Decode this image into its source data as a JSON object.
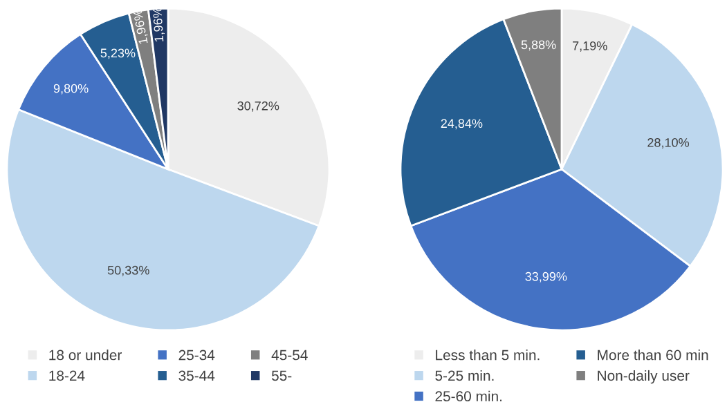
{
  "chart_data": [
    {
      "type": "pie",
      "categories": [
        "18 or under",
        "18-24",
        "25-34",
        "35-44",
        "45-54",
        "55-"
      ],
      "values": [
        30.72,
        50.33,
        9.8,
        5.23,
        1.96,
        1.96
      ],
      "value_labels": [
        "30,72%",
        "50,33%",
        "9,80%",
        "5,23%",
        "1,96%",
        "1,96%"
      ],
      "colors": [
        "#ededed",
        "#bdd7ee",
        "#4472c4",
        "#255e91",
        "#7f7f7f",
        "#203864"
      ],
      "legend": "bottom"
    },
    {
      "type": "pie",
      "categories": [
        "Less than 5 min.",
        "5-25 min.",
        "25-60 min.",
        "More than 60 min",
        "Non-daily user"
      ],
      "values": [
        7.19,
        28.1,
        33.99,
        24.84,
        5.88
      ],
      "value_labels": [
        "7,19%",
        "28,10%",
        "33,99%",
        "24,84%",
        "5,88%"
      ],
      "colors": [
        "#ededed",
        "#bdd7ee",
        "#4472c4",
        "#255e91",
        "#7f7f7f"
      ],
      "legend": "bottom"
    }
  ]
}
